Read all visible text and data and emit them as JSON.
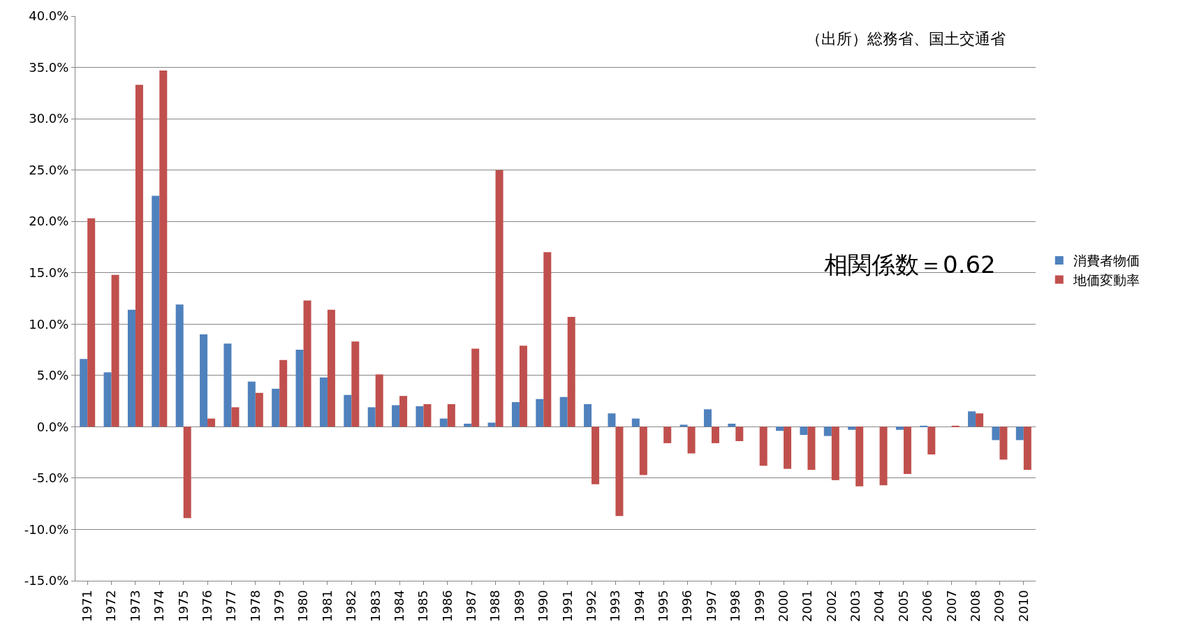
{
  "chart_data": {
    "type": "bar",
    "categories": [
      "1971",
      "1972",
      "1973",
      "1974",
      "1975",
      "1976",
      "1977",
      "1978",
      "1979",
      "1980",
      "1981",
      "1982",
      "1983",
      "1984",
      "1985",
      "1986",
      "1987",
      "1988",
      "1989",
      "1990",
      "1991",
      "1992",
      "1993",
      "1994",
      "1995",
      "1996",
      "1997",
      "1998",
      "1999",
      "2000",
      "2001",
      "2002",
      "2003",
      "2004",
      "2005",
      "2006",
      "2007",
      "2008",
      "2009",
      "2010"
    ],
    "series": [
      {
        "name": "消費者物価",
        "color": "#4f81bd",
        "values": [
          6.6,
          5.3,
          11.4,
          22.5,
          11.9,
          9.0,
          8.1,
          4.4,
          3.7,
          7.5,
          4.8,
          3.1,
          1.9,
          2.1,
          2.0,
          0.8,
          0.3,
          0.4,
          2.4,
          2.7,
          2.9,
          2.2,
          1.3,
          0.8,
          0.0,
          0.2,
          1.7,
          0.3,
          0.0,
          -0.4,
          -0.8,
          -0.9,
          -0.3,
          0.0,
          -0.3,
          0.1,
          0.0,
          1.5,
          -1.3,
          -1.3
        ]
      },
      {
        "name": "地価変動率",
        "color": "#c0504d",
        "values": [
          20.3,
          14.8,
          33.3,
          34.7,
          -8.9,
          0.8,
          1.9,
          3.3,
          6.5,
          12.3,
          11.4,
          8.3,
          5.1,
          3.0,
          2.2,
          2.2,
          7.6,
          25.0,
          7.9,
          17.0,
          10.7,
          -5.6,
          -8.7,
          -4.7,
          -1.6,
          -2.6,
          -1.6,
          -1.4,
          -3.8,
          -4.1,
          -4.2,
          -5.2,
          -5.8,
          -5.7,
          -4.6,
          -2.7,
          0.1,
          1.3,
          -3.2,
          -4.2
        ]
      }
    ],
    "ylim": [
      -15,
      40
    ],
    "yticks": [
      {
        "value": -15,
        "label": "-15.0%"
      },
      {
        "value": -10,
        "label": "-10.0%"
      },
      {
        "value": -5,
        "label": "-5.0%"
      },
      {
        "value": 0,
        "label": "0.0%"
      },
      {
        "value": 5,
        "label": "5.0%"
      },
      {
        "value": 10,
        "label": "10.0%"
      },
      {
        "value": 15,
        "label": "15.0%"
      },
      {
        "value": 20,
        "label": "20.0%"
      },
      {
        "value": 25,
        "label": "25.0%"
      },
      {
        "value": 30,
        "label": "30.0%"
      },
      {
        "value": 35,
        "label": "35.0%"
      },
      {
        "value": 40,
        "label": "40.0%"
      }
    ],
    "grid": "y",
    "legend": "right",
    "annotations": [
      "（出所）総務省、国土交通省",
      "相関係数＝0.62"
    ]
  }
}
